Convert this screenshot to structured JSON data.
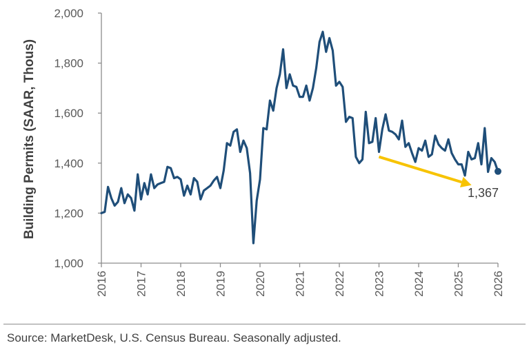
{
  "chart_data": {
    "type": "line",
    "ylabel": "Building Permits (SAAR, Thous)",
    "xlabel": "",
    "ylim": [
      1000,
      2000
    ],
    "yticks": [
      1000,
      1200,
      1400,
      1600,
      1800,
      2000
    ],
    "ytick_labels": [
      "1,000",
      "1,200",
      "1,400",
      "1,600",
      "1,800",
      "2,000"
    ],
    "xlim": [
      2016,
      2026
    ],
    "xtick_labels": [
      "2016",
      "2017",
      "2018",
      "2019",
      "2020",
      "2021",
      "2022",
      "2023",
      "2024",
      "2025",
      "2026"
    ],
    "grid": false,
    "line_color": "#1f4e79",
    "series": [
      {
        "start": "2016-01",
        "frequency": "monthly",
        "values": [
          1200,
          1205,
          1305,
          1260,
          1230,
          1245,
          1300,
          1240,
          1275,
          1260,
          1210,
          1355,
          1255,
          1320,
          1275,
          1355,
          1300,
          1315,
          1320,
          1325,
          1385,
          1380,
          1340,
          1345,
          1335,
          1270,
          1310,
          1275,
          1340,
          1325,
          1255,
          1290,
          1300,
          1310,
          1330,
          1345,
          1300,
          1370,
          1480,
          1470,
          1525,
          1535,
          1445,
          1490,
          1460,
          1360,
          1080,
          1250,
          1335,
          1540,
          1535,
          1650,
          1610,
          1700,
          1755,
          1855,
          1700,
          1755,
          1710,
          1705,
          1665,
          1665,
          1710,
          1650,
          1700,
          1780,
          1885,
          1925,
          1845,
          1900,
          1850,
          1710,
          1725,
          1705,
          1565,
          1585,
          1580,
          1425,
          1400,
          1415,
          1605,
          1480,
          1485,
          1580,
          1445,
          1535,
          1595,
          1530,
          1525,
          1515,
          1495,
          1570,
          1465,
          1480,
          1440,
          1405,
          1460,
          1450,
          1490,
          1425,
          1435,
          1510,
          1475,
          1460,
          1450,
          1495,
          1440,
          1415,
          1395,
          1395,
          1350,
          1445,
          1415,
          1420,
          1480,
          1395,
          1540,
          1365,
          1420,
          1405,
          1367
        ]
      }
    ],
    "end_value": 1367,
    "end_label": "1,367",
    "trend_arrow": {
      "color": "#f7c300",
      "from": {
        "x": "2023-01",
        "y": 1425
      },
      "to": {
        "x": "2025-05",
        "y": 1312
      }
    }
  },
  "footer": {
    "source": "Source: MarketDesk, U.S. Census Bureau. Seasonally adjusted."
  }
}
